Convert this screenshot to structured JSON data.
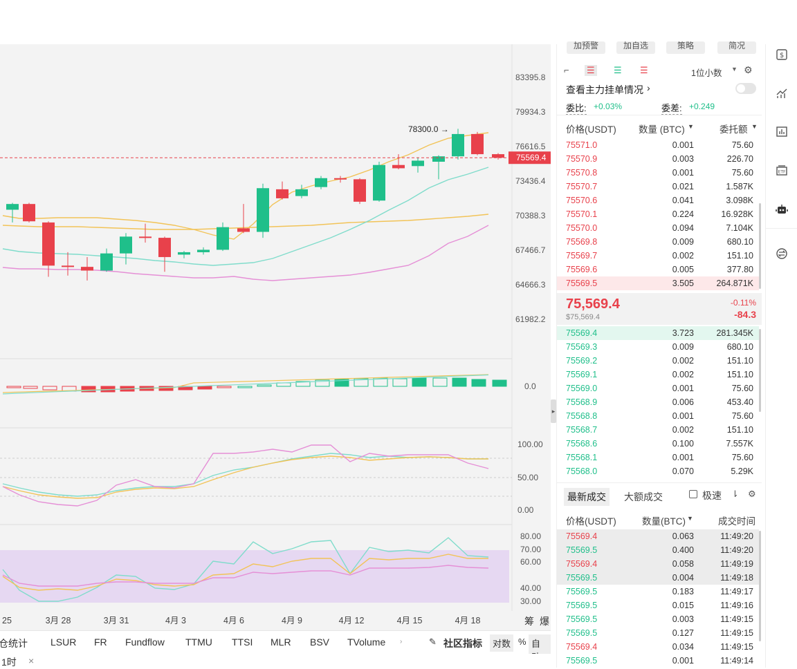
{
  "price_axis": [
    "83395.8",
    "79934.3",
    "76616.5",
    "73436.4",
    "70388.3",
    "67466.7",
    "64666.3",
    "61982.2"
  ],
  "current_price_tag": "75569.4",
  "high_marker": "78300.0",
  "macd_axis": "0.0",
  "kdj_axis": [
    "100.00",
    "50.00",
    "0.00"
  ],
  "rsi_axis": [
    "80.00",
    "70.00",
    "60.00",
    "40.00",
    "30.00"
  ],
  "date_axis": [
    "25",
    "3月 28",
    "3月 31",
    "4月 3",
    "4月 6",
    "4月 9",
    "4月 12",
    "4月 15",
    "4月 18"
  ],
  "axis_corner": [
    "筹",
    "爆"
  ],
  "bottom_indicators": [
    "仓统计",
    "LSUR",
    "FR",
    "Fundflow",
    "TTMU",
    "TTSI",
    "MLR",
    "BSV",
    "TVolume"
  ],
  "bottom_right": {
    "community": "社区指标",
    "log": "对数",
    "pct": "%",
    "auto": "自动"
  },
  "interval_tab": "1时",
  "top_buttons": [
    "加预警",
    "加自选",
    "策略",
    "简况"
  ],
  "precision": "1位小数",
  "main_order_link": "查看主力挂单情况",
  "ratio": {
    "label": "委比:",
    "value": "+0.03%",
    "diff_label": "委差:",
    "diff_value": "+0.249"
  },
  "book_headers": {
    "price": "价格(USDT)",
    "qty": "数量 (BTC)",
    "total": "委托额"
  },
  "asks": [
    {
      "p": "75571.0",
      "q": "0.001",
      "t": "75.60"
    },
    {
      "p": "75570.9",
      "q": "0.003",
      "t": "226.70"
    },
    {
      "p": "75570.8",
      "q": "0.001",
      "t": "75.60"
    },
    {
      "p": "75570.7",
      "q": "0.021",
      "t": "1.587K"
    },
    {
      "p": "75570.6",
      "q": "0.041",
      "t": "3.098K"
    },
    {
      "p": "75570.1",
      "q": "0.224",
      "t": "16.928K"
    },
    {
      "p": "75570.0",
      "q": "0.094",
      "t": "7.104K"
    },
    {
      "p": "75569.8",
      "q": "0.009",
      "t": "680.10"
    },
    {
      "p": "75569.7",
      "q": "0.002",
      "t": "151.10"
    },
    {
      "p": "75569.6",
      "q": "0.005",
      "t": "377.80"
    },
    {
      "p": "75569.5",
      "q": "3.505",
      "t": "264.871K"
    }
  ],
  "last": {
    "price": "75,569.4",
    "usd": "$75,569.4",
    "pct": "-0.11%",
    "chg": "-84.3"
  },
  "bids": [
    {
      "p": "75569.4",
      "q": "3.723",
      "t": "281.345K"
    },
    {
      "p": "75569.3",
      "q": "0.009",
      "t": "680.10"
    },
    {
      "p": "75569.2",
      "q": "0.002",
      "t": "151.10"
    },
    {
      "p": "75569.1",
      "q": "0.002",
      "t": "151.10"
    },
    {
      "p": "75569.0",
      "q": "0.001",
      "t": "75.60"
    },
    {
      "p": "75568.9",
      "q": "0.006",
      "t": "453.40"
    },
    {
      "p": "75568.8",
      "q": "0.001",
      "t": "75.60"
    },
    {
      "p": "75568.7",
      "q": "0.002",
      "t": "151.10"
    },
    {
      "p": "75568.6",
      "q": "0.100",
      "t": "7.557K"
    },
    {
      "p": "75568.1",
      "q": "0.001",
      "t": "75.60"
    },
    {
      "p": "75568.0",
      "q": "0.070",
      "t": "5.29K"
    }
  ],
  "trade_tabs": {
    "latest": "最新成交",
    "large": "大额成交",
    "fast": "极速"
  },
  "trade_headers": {
    "price": "价格(USDT)",
    "qty": "数量(BTC)",
    "time": "成交时间"
  },
  "trades": [
    {
      "p": "75569.4",
      "q": "0.063",
      "t": "11:49:20",
      "side": "sell"
    },
    {
      "p": "75569.5",
      "q": "0.400",
      "t": "11:49:20",
      "side": "buy"
    },
    {
      "p": "75569.4",
      "q": "0.058",
      "t": "11:49:19",
      "side": "sell"
    },
    {
      "p": "75569.5",
      "q": "0.004",
      "t": "11:49:18",
      "side": "buy"
    },
    {
      "p": "75569.5",
      "q": "0.183",
      "t": "11:49:17",
      "side": "buy"
    },
    {
      "p": "75569.5",
      "q": "0.015",
      "t": "11:49:16",
      "side": "buy"
    },
    {
      "p": "75569.5",
      "q": "0.003",
      "t": "11:49:15",
      "side": "buy"
    },
    {
      "p": "75569.5",
      "q": "0.127",
      "t": "11:49:15",
      "side": "buy"
    },
    {
      "p": "75569.4",
      "q": "0.034",
      "t": "11:49:15",
      "side": "sell"
    },
    {
      "p": "75569.5",
      "q": "0.001",
      "t": "11:49:14",
      "side": "buy"
    }
  ],
  "colors": {
    "up": "#1fbf8a",
    "down": "#e8414b",
    "band_mid": "#7fdccb",
    "band_outer": "#f2c357",
    "ma": "#e58fd6"
  },
  "chart_data": {
    "type": "candlestick",
    "candles": [
      {
        "o": 70900,
        "h": 71500,
        "l": 69800,
        "c": 71400
      },
      {
        "o": 71400,
        "h": 71500,
        "l": 69800,
        "c": 69900
      },
      {
        "o": 69800,
        "h": 69900,
        "l": 65300,
        "c": 66200
      },
      {
        "o": 66200,
        "h": 67300,
        "l": 65400,
        "c": 66100
      },
      {
        "o": 66100,
        "h": 66900,
        "l": 65000,
        "c": 65800
      },
      {
        "o": 65800,
        "h": 67600,
        "l": 65700,
        "c": 67200
      },
      {
        "o": 67200,
        "h": 68900,
        "l": 66300,
        "c": 68600
      },
      {
        "o": 68600,
        "h": 69700,
        "l": 68100,
        "c": 68500
      },
      {
        "o": 68500,
        "h": 68600,
        "l": 65700,
        "c": 66900
      },
      {
        "o": 67100,
        "h": 67400,
        "l": 66800,
        "c": 67300
      },
      {
        "o": 67300,
        "h": 67700,
        "l": 67100,
        "c": 67500
      },
      {
        "o": 67500,
        "h": 69800,
        "l": 67400,
        "c": 69400
      },
      {
        "o": 69300,
        "h": 71400,
        "l": 68900,
        "c": 69000
      },
      {
        "o": 69000,
        "h": 73200,
        "l": 68500,
        "c": 72800
      },
      {
        "o": 72700,
        "h": 73400,
        "l": 71800,
        "c": 71900
      },
      {
        "o": 72100,
        "h": 73100,
        "l": 71900,
        "c": 72700
      },
      {
        "o": 72900,
        "h": 73900,
        "l": 72700,
        "c": 73700
      },
      {
        "o": 73700,
        "h": 73900,
        "l": 73300,
        "c": 73600
      },
      {
        "o": 73600,
        "h": 73700,
        "l": 71400,
        "c": 71600
      },
      {
        "o": 71700,
        "h": 75200,
        "l": 71600,
        "c": 74900
      },
      {
        "o": 74900,
        "h": 75900,
        "l": 74500,
        "c": 74600
      },
      {
        "o": 74800,
        "h": 75600,
        "l": 74200,
        "c": 75300
      },
      {
        "o": 75200,
        "h": 75800,
        "l": 73600,
        "c": 75700
      },
      {
        "o": 75700,
        "h": 78300,
        "l": 75400,
        "c": 77800
      },
      {
        "o": 77800,
        "h": 78000,
        "l": 75800,
        "c": 75900
      },
      {
        "o": 75900,
        "h": 76000,
        "l": 75400,
        "c": 75569
      }
    ]
  }
}
